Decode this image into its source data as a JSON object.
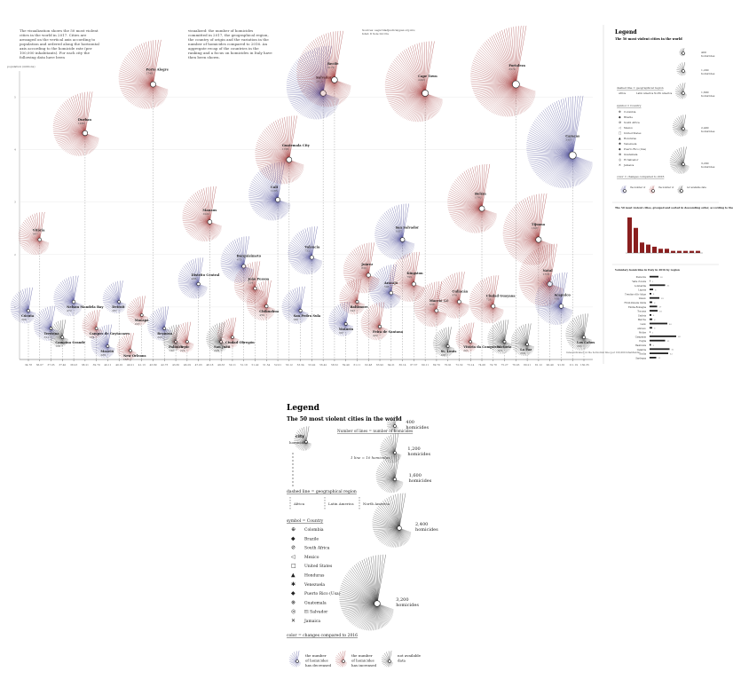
{
  "intro": {
    "col1": "The visualization shows the 50 most violent cities in the world in 2017. Cities are arranged on the vertical axis according to population and ordered along the horizontal axis according to the homicide rate (per 100,000 inhabitants). For each city the following data have been",
    "col2": "visualized: the number of homicides committed in 2017, the geographical region, the country of origin and the variation in the number of homicides compared to 2016. An aggregate recap of the countries in the ranking and a focus on homicides in Italy have then been shown.",
    "source": "Sources: seguridadjusticiaypaz.org.mx; Istat; Il Sole 24 Ore"
  },
  "axis": {
    "y_label": "population (millions)",
    "x_note": "rates indicated on the horizontal line (per 100,000 inhabitants)"
  },
  "legend": {
    "title": "Legend",
    "subtitle": "The 50 most violent cities in the world",
    "city_label": "city",
    "homicides_label": "homicides",
    "lines_note": "Number of lines = number of homicides",
    "line_unit": "1 line = 10 homicides",
    "sizes": [
      {
        "value": "400",
        "unit": "homicides"
      },
      {
        "value": "1,200",
        "unit": "homicides"
      },
      {
        "value": "1,600",
        "unit": "homicides"
      },
      {
        "value": "2,400",
        "unit": "homicides"
      },
      {
        "value": "3,200",
        "unit": "homicides"
      }
    ],
    "region_title": "dashed line = geographical region",
    "regions": [
      "Africa",
      "Latin America",
      "North America"
    ],
    "symbol_title": "symbol = Country",
    "countries": [
      {
        "symbol": "⊕",
        "name": "Colombia"
      },
      {
        "symbol": "◆",
        "name": "Brazile"
      },
      {
        "symbol": "⊘",
        "name": "South Africa"
      },
      {
        "symbol": "◁",
        "name": "Mexico"
      },
      {
        "symbol": "□",
        "name": "United States"
      },
      {
        "symbol": "▲",
        "name": "Honduras"
      },
      {
        "symbol": "✱",
        "name": "Venezuela"
      },
      {
        "symbol": "◆",
        "name": "Puerto Rico (Usa)"
      },
      {
        "symbol": "⊛",
        "name": "Guatemala"
      },
      {
        "symbol": "◎",
        "name": "El Salvador"
      },
      {
        "symbol": "✕",
        "name": "Jamaica"
      }
    ],
    "color_title": "color = changes compared to 2016",
    "colors": [
      {
        "label": "the number of homicides has decreased",
        "color": "#3a3a8c"
      },
      {
        "label": "the number of homicides has increased",
        "color": "#9c2c2c"
      },
      {
        "label": "not available data",
        "color": "#222222"
      }
    ]
  },
  "side": {
    "chart2_title": "The 50 most violent cities, grouped and sorted in descending order, according to the country they belong to",
    "chart2_bars": [
      17,
      12,
      5,
      4,
      3,
      2,
      2,
      1,
      1,
      1,
      1,
      1
    ],
    "chart3_title": "Voluntary homicides in Italy in 2016 by region",
    "regions_it": [
      "Piemonte",
      "Valle d'Aosta",
      "Lombardia",
      "Liguria",
      "Trentino-Alto Adige",
      "Veneto",
      "Friuli-Venezia Giulia",
      "Emilia-Romagna",
      "Toscana",
      "Umbria",
      "Marche",
      "Lazio",
      "Abruzzo",
      "Molise",
      "Campania",
      "Puglia",
      "Basilicata",
      "Calabria",
      "Sicilia",
      "Sardegna"
    ],
    "regions_it_values": [
      20,
      1,
      35,
      8,
      4,
      22,
      6,
      17,
      18,
      4,
      6,
      40,
      6,
      1,
      60,
      35,
      3,
      45,
      42,
      15
    ]
  },
  "chart_data": {
    "type": "scatter",
    "title": "",
    "xlabel": "",
    "ylabel": "population (millions)",
    "x_ticks": [
      "34.78",
      "36.07",
      "37.05",
      "37.40",
      "38.23",
      "38.21",
      "39.79",
      "40.11",
      "40.10",
      "40.21",
      "41.13",
      "43.89",
      "42.73",
      "43.30",
      "46.29",
      "47.03",
      "48.18",
      "49.33",
      "50.11",
      "51.18",
      "51.42",
      "51.54",
      "52.01",
      "53.12",
      "53.34",
      "53.42",
      "56.42",
      "58.52",
      "59.49",
      "61.11",
      "62.48",
      "63.92",
      "64.21",
      "65.14",
      "67.37",
      "69.11",
      "69.70",
      "70.91",
      "72.32",
      "73.14",
      "74.06",
      "74.78",
      "75.27",
      "76.03",
      "80.21",
      "81.12",
      "90.49",
      "91.81",
      "111.19",
      "130.35"
    ],
    "y_ticks": [
      "1",
      "2",
      "3",
      "4",
      "5"
    ],
    "series": [
      {
        "name": "Cúcuta",
        "x": 34.78,
        "homicides": 346,
        "change": "decreased"
      },
      {
        "name": "Vitória",
        "x": 36.07,
        "homicides": 547,
        "change": "increased"
      },
      {
        "name": "Teresina",
        "x": 37.05,
        "homicides": 321,
        "change": "decreased"
      },
      {
        "name": "Campina Grande",
        "x": 37.4,
        "homicides": 155,
        "change": "n/a"
      },
      {
        "name": "Nelson Mandela Bay",
        "x": 38.23,
        "homicides": 472,
        "change": "decreased"
      },
      {
        "name": "Durban",
        "x": 38.21,
        "homicides": 1480,
        "change": "increased"
      },
      {
        "name": "Campos de Goytacazes",
        "x": 39.79,
        "homicides": 184,
        "change": "increased"
      },
      {
        "name": "Maceió",
        "x": 40.11,
        "homicides": 286,
        "change": "decreased"
      },
      {
        "name": "Detroit",
        "x": 40.1,
        "homicides": 267,
        "change": "decreased"
      },
      {
        "name": "New Orleans",
        "x": 40.21,
        "homicides": 157,
        "change": "increased"
      },
      {
        "name": "Macapá",
        "x": 41.13,
        "homicides": 203,
        "change": "increased"
      },
      {
        "name": "Porto Alegre",
        "x": 43.89,
        "homicides": 1748,
        "change": "increased"
      },
      {
        "name": "Reynosa",
        "x": 42.73,
        "homicides": 300,
        "change": "decreased"
      },
      {
        "name": "Palmira",
        "x": 43.3,
        "homicides": 144,
        "change": "n/a"
      },
      {
        "name": "Tepic",
        "x": 46.29,
        "homicides": 222,
        "change": "increased"
      },
      {
        "name": "Distrito Central",
        "x": 47.03,
        "homicides": 488,
        "change": "decreased"
      },
      {
        "name": "Manaus",
        "x": 48.18,
        "homicides": 1022,
        "change": "increased"
      },
      {
        "name": "San Juan",
        "x": 49.33,
        "homicides": 208,
        "change": "n/a"
      },
      {
        "name": "Ciudad Obregón",
        "x": 50.11,
        "homicides": 221,
        "change": "increased"
      },
      {
        "name": "Barquisimeto",
        "x": 51.18,
        "homicides": 675,
        "change": "decreased"
      },
      {
        "name": "João Pessoa",
        "x": 51.42,
        "homicides": 524,
        "change": "increased"
      },
      {
        "name": "Chihuahua",
        "x": 51.54,
        "homicides": 459,
        "change": "increased"
      },
      {
        "name": "Cali",
        "x": 52.01,
        "homicides": 1185,
        "change": "decreased"
      },
      {
        "name": "Guatemala City",
        "x": 53.12,
        "homicides": 1705,
        "change": "increased"
      },
      {
        "name": "San Pedro Sula",
        "x": 53.34,
        "homicides": 386,
        "change": "decreased"
      },
      {
        "name": "Valencia",
        "x": 53.42,
        "homicides": 732,
        "change": "decreased"
      },
      {
        "name": "Salvador",
        "x": 56.42,
        "homicides": 2025,
        "change": "decreased"
      },
      {
        "name": "Recife",
        "x": 58.52,
        "homicides": 2179,
        "change": "increased"
      },
      {
        "name": "Maturín",
        "x": 59.49,
        "homicides": 307,
        "change": "decreased"
      },
      {
        "name": "Baltimore",
        "x": 61.11,
        "homicides": 343,
        "change": "increased"
      },
      {
        "name": "Juárez",
        "x": 62.48,
        "homicides": 832,
        "change": "increased"
      },
      {
        "name": "Feira de Santana",
        "x": 63.92,
        "homicides": 402,
        "change": "increased"
      },
      {
        "name": "Aracajú",
        "x": 64.21,
        "homicides": 596,
        "change": "decreased"
      },
      {
        "name": "San Salvador",
        "x": 65.14,
        "homicides": 1057,
        "change": "decreased"
      },
      {
        "name": "Kingston",
        "x": 67.37,
        "homicides": 799,
        "change": "increased"
      },
      {
        "name": "Cape Town",
        "x": 69.11,
        "homicides": 2493,
        "change": "increased"
      },
      {
        "name": "Maceió (2)",
        "x": 69.7,
        "homicides": 638,
        "change": "increased"
      },
      {
        "name": "St. Louis",
        "x": 70.91,
        "homicides": 205,
        "change": "n/a"
      },
      {
        "name": "Culiacán",
        "x": 72.32,
        "homicides": 676,
        "change": "increased"
      },
      {
        "name": "Vitória da Conquista",
        "x": 73.14,
        "homicides": 201,
        "change": "increased"
      },
      {
        "name": "Belém",
        "x": 74.06,
        "homicides": 1743,
        "change": "increased"
      },
      {
        "name": "Ciudad Guayana",
        "x": 74.78,
        "homicides": 728,
        "change": "increased"
      },
      {
        "name": "Victoria",
        "x": 75.27,
        "homicides": 301,
        "change": "n/a"
      },
      {
        "name": "Fortaleza",
        "x": 76.03,
        "homicides": 3270,
        "change": "increased"
      },
      {
        "name": "La Paz",
        "x": 80.21,
        "homicides": 259,
        "change": "n/a"
      },
      {
        "name": "Tijuana",
        "x": 81.12,
        "homicides": 1897,
        "change": "increased"
      },
      {
        "name": "Natal",
        "x": 90.49,
        "homicides": 1378,
        "change": "increased"
      },
      {
        "name": "Acapulco",
        "x": 91.81,
        "homicides": 910,
        "change": "decreased"
      },
      {
        "name": "Caracas",
        "x": 111.19,
        "homicides": 3387,
        "change": "decreased"
      },
      {
        "name": "Los Cabos",
        "x": 130.35,
        "homicides": 365,
        "change": "n/a"
      }
    ]
  }
}
